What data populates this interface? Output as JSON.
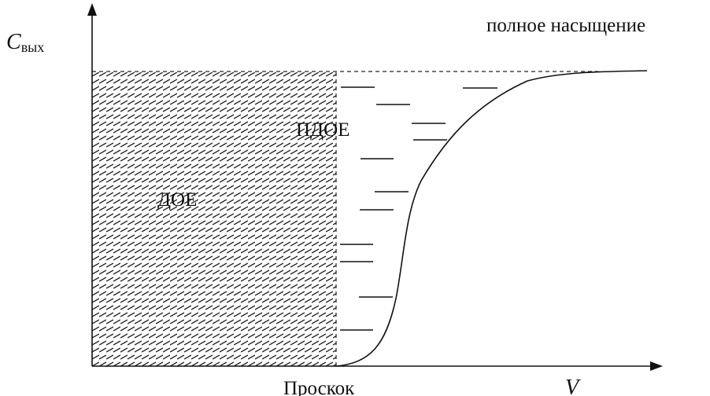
{
  "labels": {
    "y_axis_main": "C",
    "y_axis_sub": "вых",
    "x_axis": "V",
    "breakthrough": "Проскок",
    "full_saturation": "полное насыщение",
    "doe": "ДОЕ",
    "pdoe": "ПДОЕ"
  },
  "colors": {
    "ink": "#111111",
    "background": "#ffffff"
  }
}
